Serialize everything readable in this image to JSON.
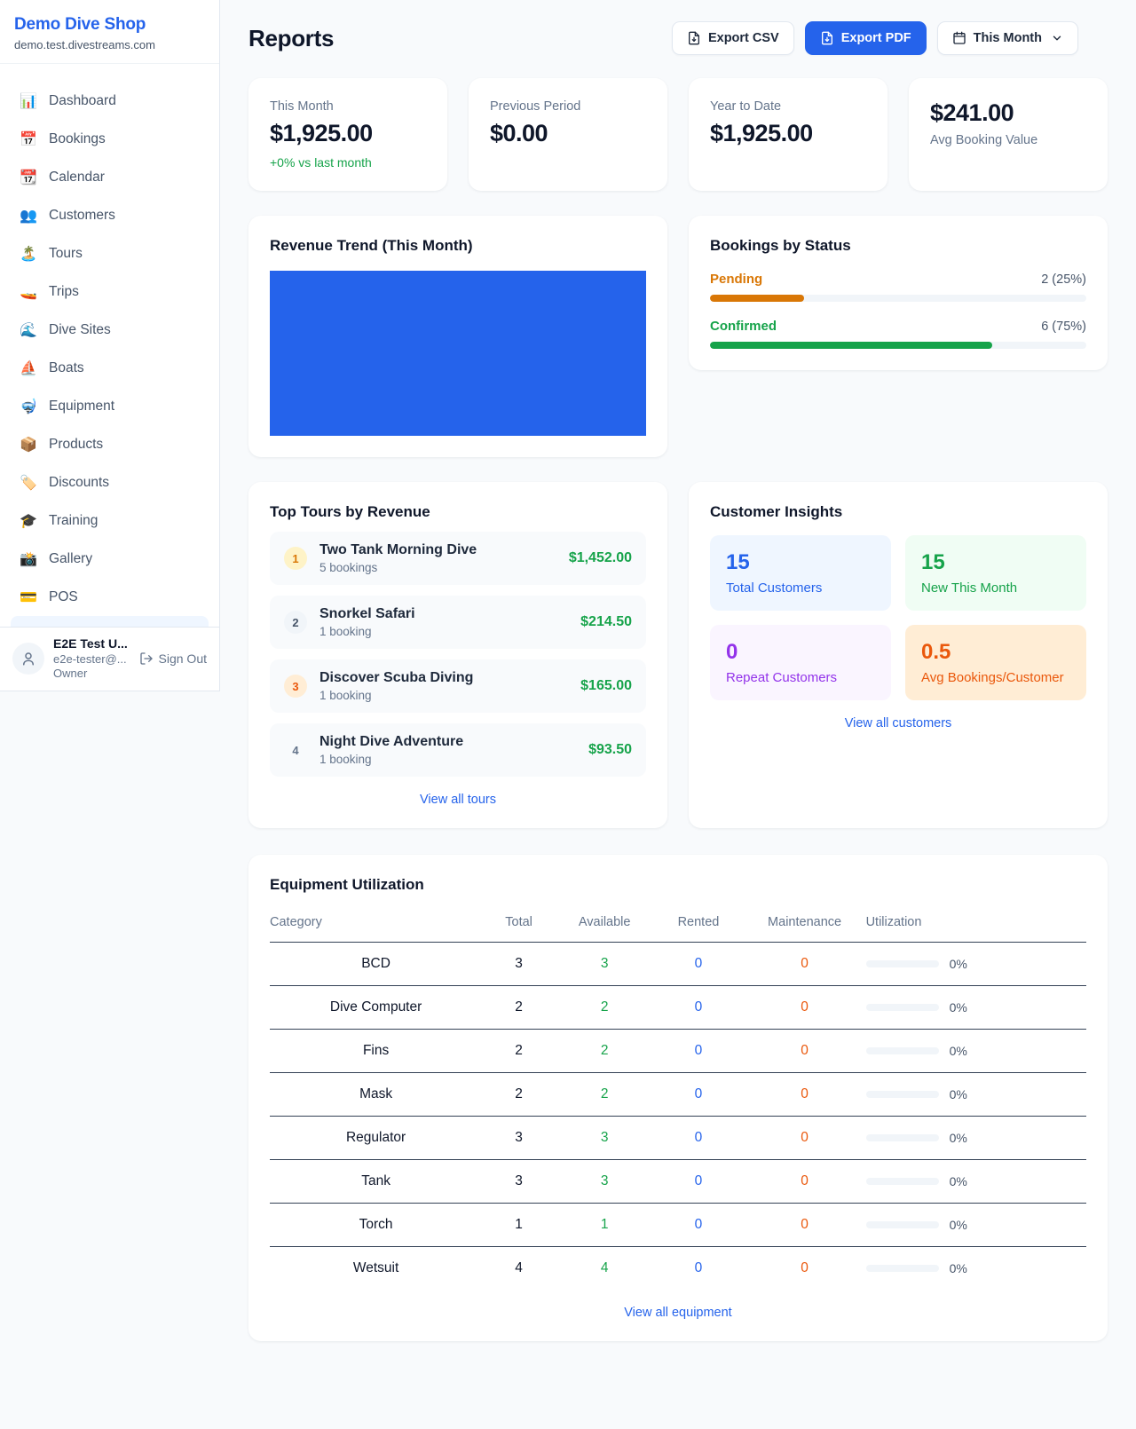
{
  "colors": {
    "accent_blue": "#2563eb",
    "green": "#16a34a",
    "amber": "#d97706",
    "orange": "#ea580c",
    "purple": "#9333ea",
    "page_bg": "#f8fafc"
  },
  "sidebar": {
    "shop_name": "Demo Dive Shop",
    "shop_domain": "demo.test.divestreams.com",
    "nav": [
      {
        "icon": "📊",
        "label": "Dashboard"
      },
      {
        "icon": "📅",
        "label": "Bookings"
      },
      {
        "icon": "📆",
        "label": "Calendar"
      },
      {
        "icon": "👥",
        "label": "Customers"
      },
      {
        "icon": "🏝️",
        "label": "Tours"
      },
      {
        "icon": "🚤",
        "label": "Trips"
      },
      {
        "icon": "🌊",
        "label": "Dive Sites"
      },
      {
        "icon": "⛵",
        "label": "Boats"
      },
      {
        "icon": "🤿",
        "label": "Equipment"
      },
      {
        "icon": "📦",
        "label": "Products"
      },
      {
        "icon": "🏷️",
        "label": "Discounts"
      },
      {
        "icon": "🎓",
        "label": "Training"
      },
      {
        "icon": "📸",
        "label": "Gallery"
      },
      {
        "icon": "💳",
        "label": "POS"
      }
    ],
    "user": {
      "name": "E2E Test U...",
      "email": "e2e-tester@...",
      "role": "Owner",
      "sign_out_label": "Sign Out"
    }
  },
  "header": {
    "title": "Reports",
    "export_csv_label": "Export CSV",
    "export_pdf_label": "Export PDF",
    "period_label": "This Month",
    "icons": [
      "file-export-icon",
      "file-export-icon",
      "calendar-icon",
      "chevron-down-icon"
    ]
  },
  "stats": [
    {
      "label": "This Month",
      "value": "$1,925.00",
      "sub": "+0% vs last month"
    },
    {
      "label": "Previous Period",
      "value": "$0.00"
    },
    {
      "label": "Year to Date",
      "value": "$1,925.00"
    },
    {
      "label": "Avg Booking Value",
      "value": "$241.00"
    }
  ],
  "revenue_trend": {
    "title": "Revenue Trend (This Month)",
    "bar_color": "#2563eb"
  },
  "bookings_by_status": {
    "title": "Bookings by Status",
    "items": [
      {
        "label": "Pending",
        "value": "2 (25%)",
        "count": 2,
        "pct": 25
      },
      {
        "label": "Confirmed",
        "value": "6 (75%)",
        "count": 6,
        "pct": 75
      }
    ]
  },
  "top_tours": {
    "title": "Top Tours by Revenue",
    "rows": [
      {
        "rank": "1",
        "name": "Two Tank Morning Dive",
        "bookings": "5 bookings",
        "revenue": "$1,452.00"
      },
      {
        "rank": "2",
        "name": "Snorkel Safari",
        "bookings": "1 booking",
        "revenue": "$214.50"
      },
      {
        "rank": "3",
        "name": "Discover Scuba Diving",
        "bookings": "1 booking",
        "revenue": "$165.00"
      },
      {
        "rank": "4",
        "name": "Night Dive Adventure",
        "bookings": "1 booking",
        "revenue": "$93.50"
      }
    ],
    "view_all": "View all tours"
  },
  "customer_insights": {
    "title": "Customer Insights",
    "tiles": [
      {
        "value": "15",
        "label": "Total Customers"
      },
      {
        "value": "15",
        "label": "New This Month"
      },
      {
        "value": "0",
        "label": "Repeat Customers"
      },
      {
        "value": "0.5",
        "label": "Avg Bookings/Customer"
      }
    ],
    "view_all": "View all customers"
  },
  "equipment": {
    "title": "Equipment Utilization",
    "columns": [
      "Category",
      "Total",
      "Available",
      "Rented",
      "Maintenance",
      "Utilization"
    ],
    "rows": [
      {
        "category": "BCD",
        "total": "3",
        "available": "3",
        "rented": "0",
        "maintenance": "0",
        "utilization": "0%",
        "util_pct": 0
      },
      {
        "category": "Dive Computer",
        "total": "2",
        "available": "2",
        "rented": "0",
        "maintenance": "0",
        "utilization": "0%",
        "util_pct": 0
      },
      {
        "category": "Fins",
        "total": "2",
        "available": "2",
        "rented": "0",
        "maintenance": "0",
        "utilization": "0%",
        "util_pct": 0
      },
      {
        "category": "Mask",
        "total": "2",
        "available": "2",
        "rented": "0",
        "maintenance": "0",
        "utilization": "0%",
        "util_pct": 0
      },
      {
        "category": "Regulator",
        "total": "3",
        "available": "3",
        "rented": "0",
        "maintenance": "0",
        "utilization": "0%",
        "util_pct": 0
      },
      {
        "category": "Tank",
        "total": "3",
        "available": "3",
        "rented": "0",
        "maintenance": "0",
        "utilization": "0%",
        "util_pct": 0
      },
      {
        "category": "Torch",
        "total": "1",
        "available": "1",
        "rented": "0",
        "maintenance": "0",
        "utilization": "0%",
        "util_pct": 0
      },
      {
        "category": "Wetsuit",
        "total": "4",
        "available": "4",
        "rented": "0",
        "maintenance": "0",
        "utilization": "0%",
        "util_pct": 0
      }
    ],
    "view_all": "View all equipment"
  }
}
